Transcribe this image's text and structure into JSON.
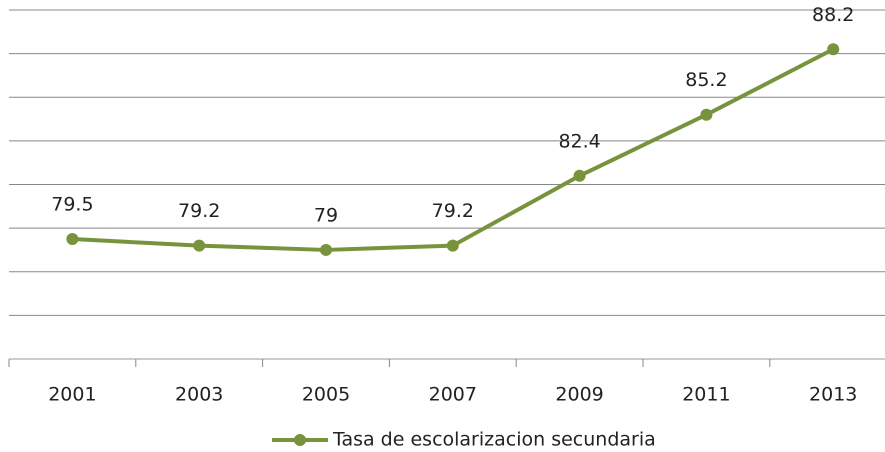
{
  "chart_data": {
    "type": "line",
    "categories": [
      "2001",
      "2003",
      "2005",
      "2007",
      "2009",
      "2011",
      "2013"
    ],
    "series": [
      {
        "name": "Tasa de escolarizacion secundaria",
        "color": "#77933c",
        "values": [
          79.5,
          79.2,
          79,
          79.2,
          82.4,
          85.2,
          88.2
        ]
      }
    ],
    "ylim": [
      74,
      90
    ],
    "yticks": [
      74,
      76,
      78,
      80,
      82,
      84,
      86,
      88,
      90
    ],
    "grid": true,
    "legend": "bottom",
    "data_labels": true
  }
}
